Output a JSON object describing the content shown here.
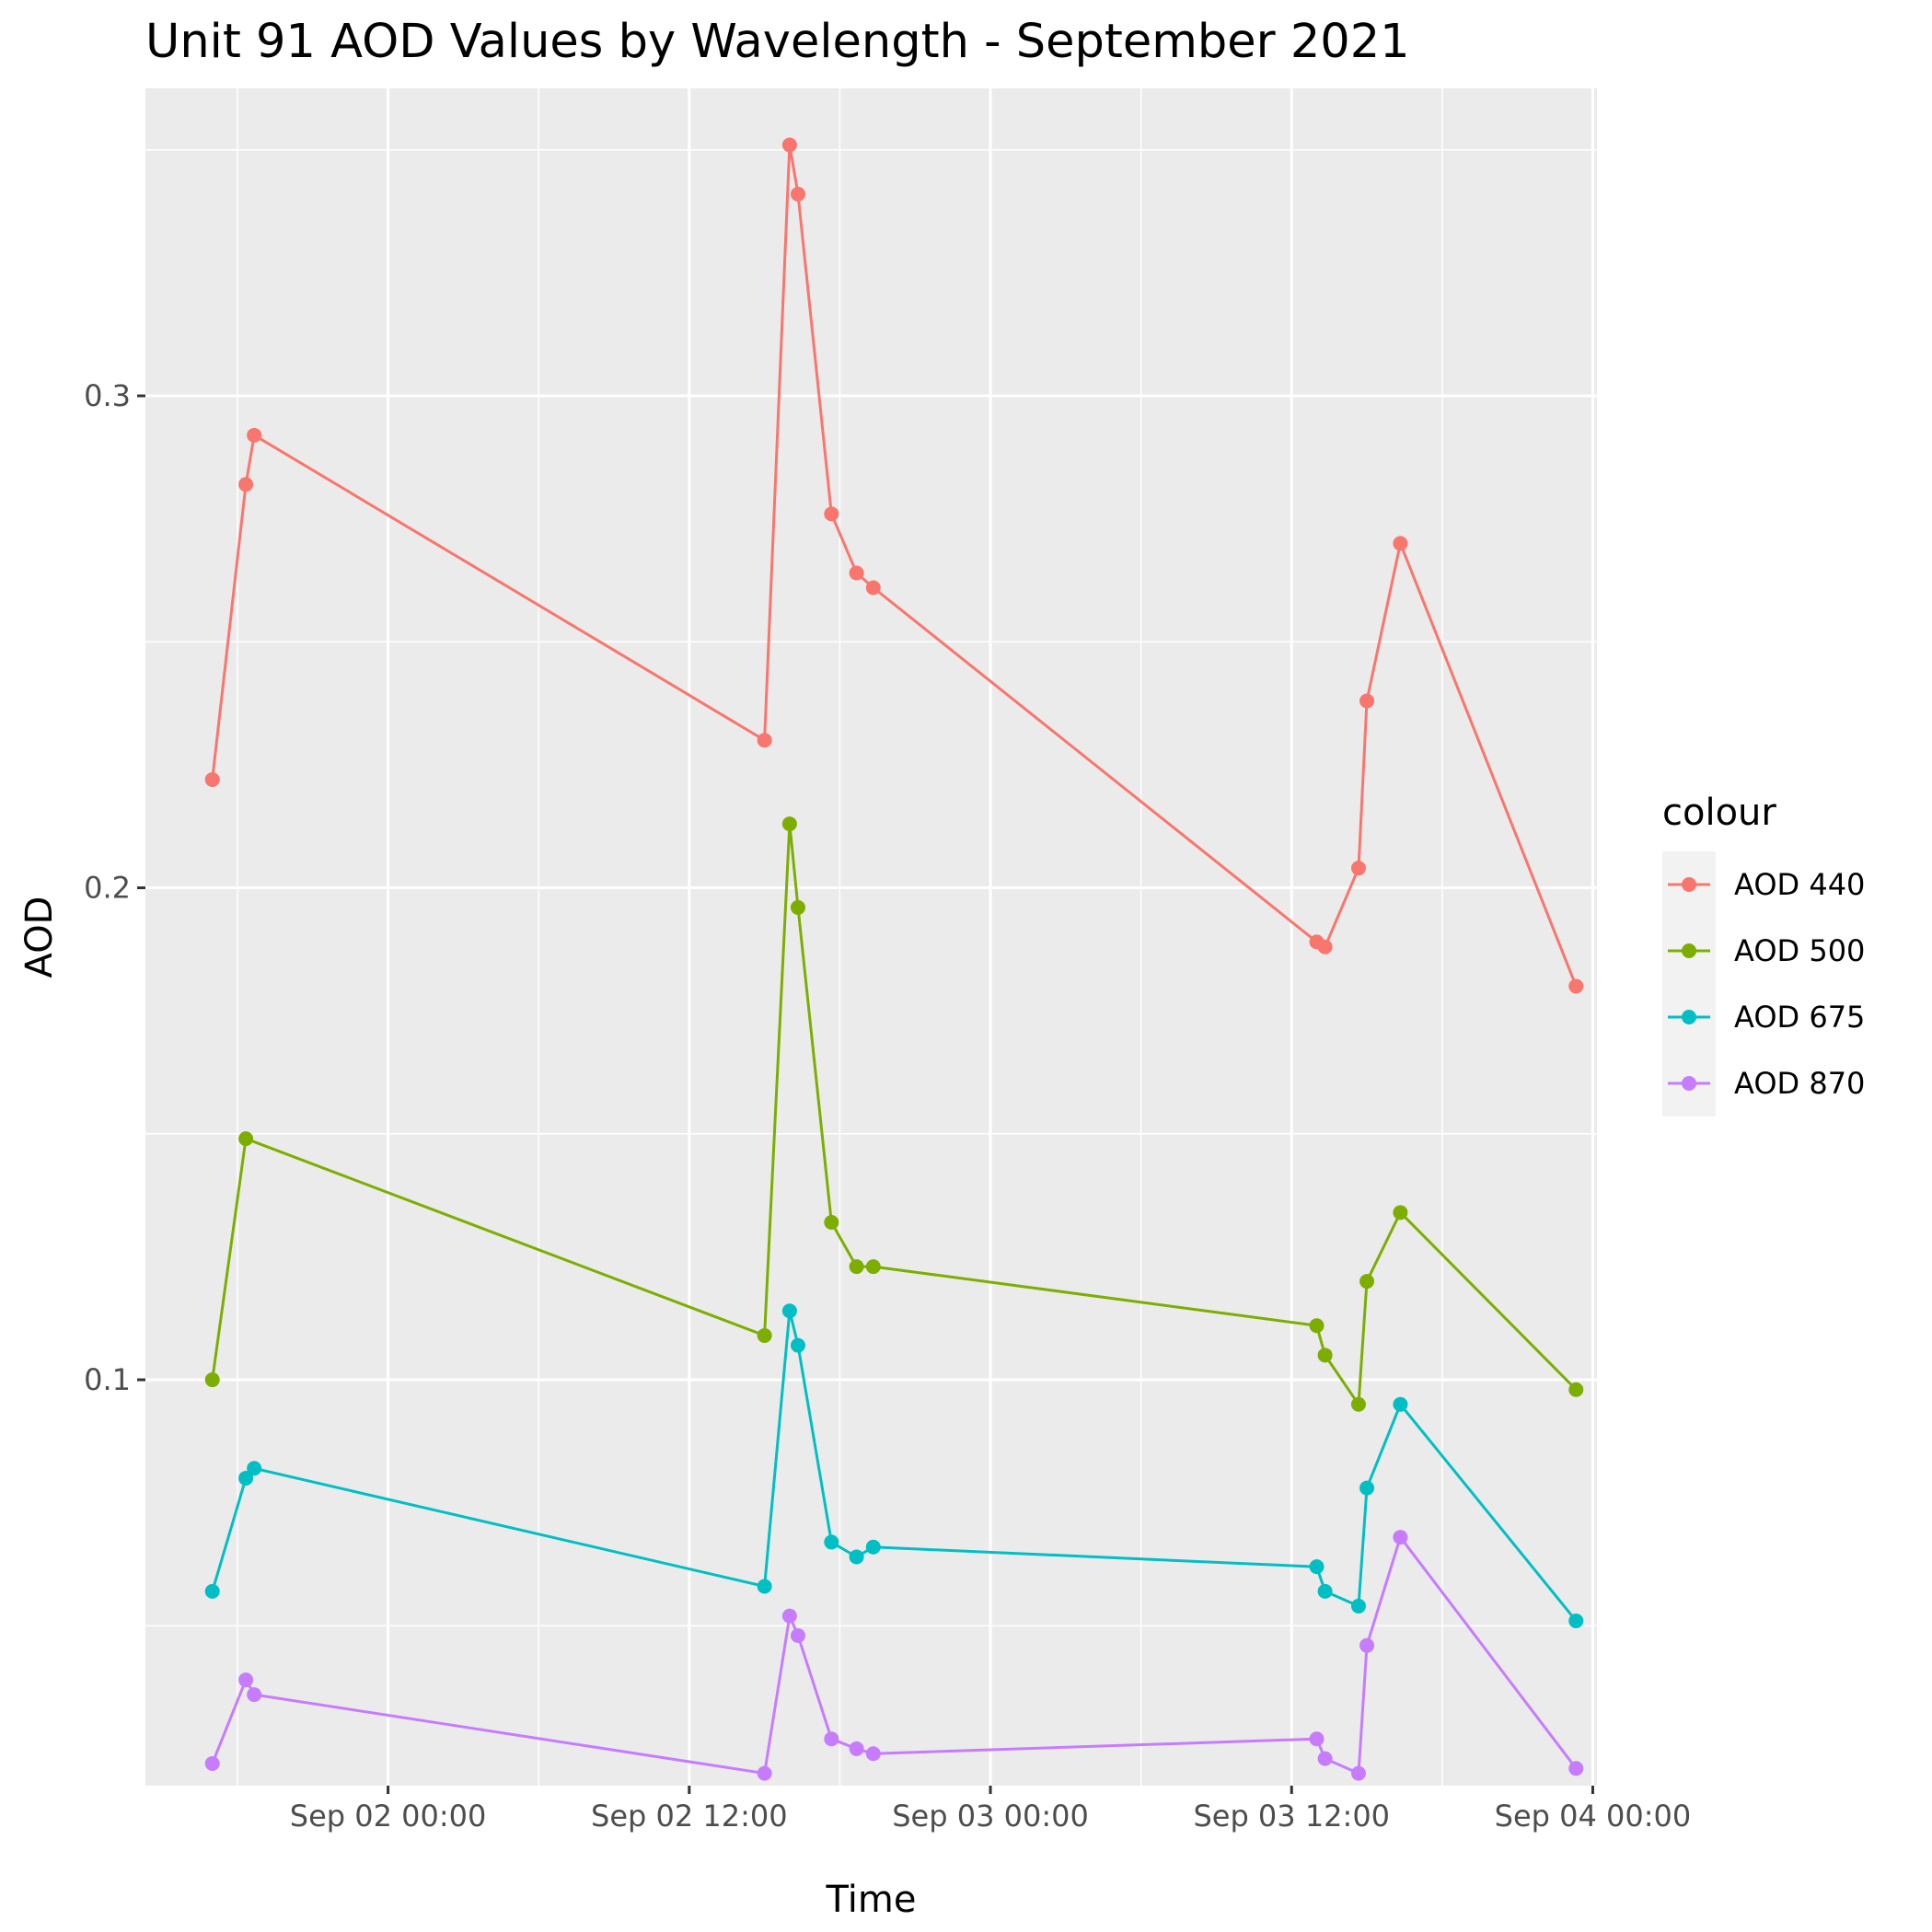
{
  "chart_data": {
    "type": "line",
    "title": "Unit 91 AOD Values by Wavelength - September 2021",
    "xlabel": "Time",
    "ylabel": "AOD",
    "legend_title": "colour",
    "legend_position": "right",
    "grid": true,
    "xlim": [
      "2021-09-01 14:20",
      "2021-09-04 00:10"
    ],
    "ylim": [
      0.0175,
      0.3625
    ],
    "x_ticks": [
      {
        "value": "2021-09-02 00:00",
        "label": "Sep 02 00:00"
      },
      {
        "value": "2021-09-02 12:00",
        "label": "Sep 02 12:00"
      },
      {
        "value": "2021-09-03 00:00",
        "label": "Sep 03 00:00"
      },
      {
        "value": "2021-09-03 12:00",
        "label": "Sep 03 12:00"
      },
      {
        "value": "2021-09-04 00:00",
        "label": "Sep 04 00:00"
      }
    ],
    "y_ticks": [
      {
        "value": 0.1,
        "label": "0.1"
      },
      {
        "value": 0.2,
        "label": "0.2"
      },
      {
        "value": 0.3,
        "label": "0.3"
      }
    ],
    "series": [
      {
        "name": "AOD 440",
        "color": "#F8766D",
        "points": [
          {
            "x": "2021-09-01 17:00",
            "y": 0.222
          },
          {
            "x": "2021-09-01 18:20",
            "y": 0.282
          },
          {
            "x": "2021-09-01 18:40",
            "y": 0.292
          },
          {
            "x": "2021-09-02 15:00",
            "y": 0.23
          },
          {
            "x": "2021-09-02 16:00",
            "y": 0.351
          },
          {
            "x": "2021-09-02 16:20",
            "y": 0.341
          },
          {
            "x": "2021-09-02 17:40",
            "y": 0.276
          },
          {
            "x": "2021-09-02 18:40",
            "y": 0.264
          },
          {
            "x": "2021-09-02 19:20",
            "y": 0.261
          },
          {
            "x": "2021-09-03 13:00",
            "y": 0.189
          },
          {
            "x": "2021-09-03 13:20",
            "y": 0.188
          },
          {
            "x": "2021-09-03 14:40",
            "y": 0.204
          },
          {
            "x": "2021-09-03 15:00",
            "y": 0.238
          },
          {
            "x": "2021-09-03 16:20",
            "y": 0.27
          },
          {
            "x": "2021-09-03 23:20",
            "y": 0.18
          }
        ]
      },
      {
        "name": "AOD 500",
        "color": "#7CAE00",
        "points": [
          {
            "x": "2021-09-01 17:00",
            "y": 0.1
          },
          {
            "x": "2021-09-01 18:20",
            "y": 0.149
          },
          {
            "x": "2021-09-02 15:00",
            "y": 0.109
          },
          {
            "x": "2021-09-02 16:00",
            "y": 0.213
          },
          {
            "x": "2021-09-02 16:20",
            "y": 0.196
          },
          {
            "x": "2021-09-02 17:40",
            "y": 0.132
          },
          {
            "x": "2021-09-02 18:40",
            "y": 0.123
          },
          {
            "x": "2021-09-02 19:20",
            "y": 0.123
          },
          {
            "x": "2021-09-03 13:00",
            "y": 0.111
          },
          {
            "x": "2021-09-03 13:20",
            "y": 0.105
          },
          {
            "x": "2021-09-03 14:40",
            "y": 0.095
          },
          {
            "x": "2021-09-03 15:00",
            "y": 0.12
          },
          {
            "x": "2021-09-03 16:20",
            "y": 0.134
          },
          {
            "x": "2021-09-03 23:20",
            "y": 0.098
          }
        ]
      },
      {
        "name": "AOD 675",
        "color": "#00BFC4",
        "points": [
          {
            "x": "2021-09-01 17:00",
            "y": 0.057
          },
          {
            "x": "2021-09-01 18:20",
            "y": 0.08
          },
          {
            "x": "2021-09-01 18:40",
            "y": 0.082
          },
          {
            "x": "2021-09-02 15:00",
            "y": 0.058
          },
          {
            "x": "2021-09-02 16:00",
            "y": 0.114
          },
          {
            "x": "2021-09-02 16:20",
            "y": 0.107
          },
          {
            "x": "2021-09-02 17:40",
            "y": 0.067
          },
          {
            "x": "2021-09-02 18:40",
            "y": 0.064
          },
          {
            "x": "2021-09-02 19:20",
            "y": 0.066
          },
          {
            "x": "2021-09-03 13:00",
            "y": 0.062
          },
          {
            "x": "2021-09-03 13:20",
            "y": 0.057
          },
          {
            "x": "2021-09-03 14:40",
            "y": 0.054
          },
          {
            "x": "2021-09-03 15:00",
            "y": 0.078
          },
          {
            "x": "2021-09-03 16:20",
            "y": 0.095
          },
          {
            "x": "2021-09-03 23:20",
            "y": 0.051
          }
        ]
      },
      {
        "name": "AOD 870",
        "color": "#C77CFF",
        "points": [
          {
            "x": "2021-09-01 17:00",
            "y": 0.022
          },
          {
            "x": "2021-09-01 18:20",
            "y": 0.039
          },
          {
            "x": "2021-09-01 18:40",
            "y": 0.036
          },
          {
            "x": "2021-09-02 15:00",
            "y": 0.02
          },
          {
            "x": "2021-09-02 16:00",
            "y": 0.052
          },
          {
            "x": "2021-09-02 16:20",
            "y": 0.048
          },
          {
            "x": "2021-09-02 17:40",
            "y": 0.027
          },
          {
            "x": "2021-09-02 18:40",
            "y": 0.025
          },
          {
            "x": "2021-09-02 19:20",
            "y": 0.024
          },
          {
            "x": "2021-09-03 13:00",
            "y": 0.027
          },
          {
            "x": "2021-09-03 13:20",
            "y": 0.023
          },
          {
            "x": "2021-09-03 14:40",
            "y": 0.02
          },
          {
            "x": "2021-09-03 15:00",
            "y": 0.046
          },
          {
            "x": "2021-09-03 16:20",
            "y": 0.068
          },
          {
            "x": "2021-09-03 23:20",
            "y": 0.021
          }
        ]
      }
    ]
  }
}
